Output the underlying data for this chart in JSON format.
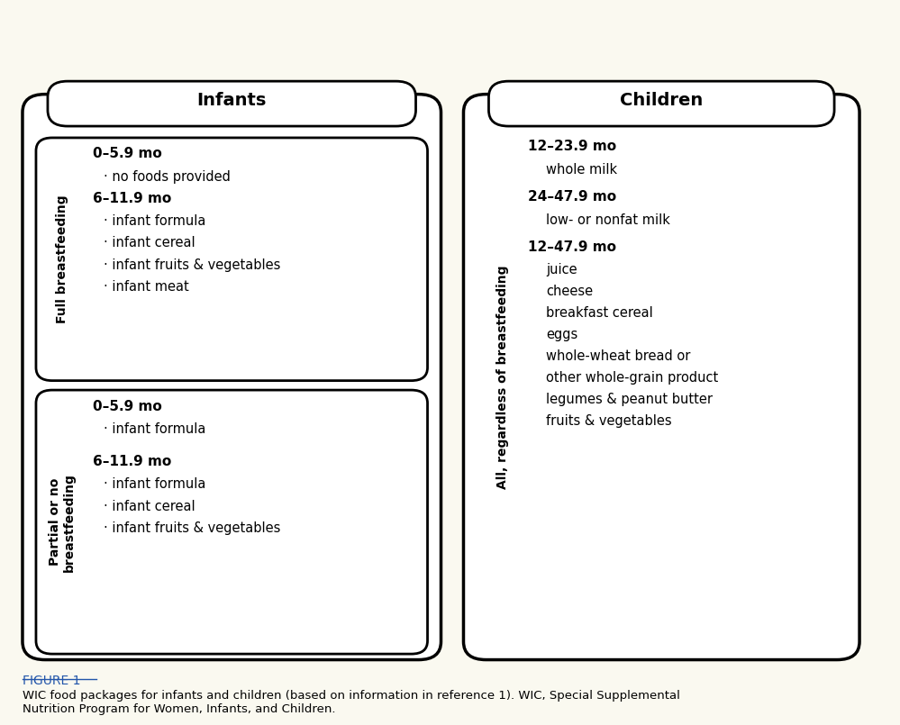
{
  "bg_color": "#faf9f0",
  "figure_caption_label": "FIGURE 1",
  "figure_caption": "WIC food packages for infants and children (based on information in reference 1). WIC, Special Supplemental\nNutrition Program for Women, Infants, and Children.",
  "infants_header": "Infants",
  "children_header": "Children",
  "full_bf_label": "Full breastfeeding",
  "partial_bf_label": "Partial or no\nbreastfeeding",
  "all_bf_label": "All, regardless of breastfeeding",
  "full_bf_section": [
    {
      "type": "header",
      "text": "0–5.9 mo"
    },
    {
      "type": "bullet",
      "text": "· no foods provided"
    },
    {
      "type": "header",
      "text": "6–11.9 mo"
    },
    {
      "type": "bullet",
      "text": "· infant formula"
    },
    {
      "type": "bullet",
      "text": "· infant cereal"
    },
    {
      "type": "bullet",
      "text": "· infant fruits & vegetables"
    },
    {
      "type": "bullet",
      "text": "· infant meat"
    }
  ],
  "partial_bf_section": [
    {
      "type": "header",
      "text": "0–5.9 mo"
    },
    {
      "type": "bullet",
      "text": "· infant formula"
    },
    {
      "type": "spacer"
    },
    {
      "type": "header",
      "text": "6–11.9 mo"
    },
    {
      "type": "bullet",
      "text": "· infant formula"
    },
    {
      "type": "bullet",
      "text": "· infant cereal"
    },
    {
      "type": "bullet",
      "text": "· infant fruits & vegetables"
    }
  ],
  "children_section": [
    {
      "type": "header",
      "text": "12–23.9 mo"
    },
    {
      "type": "indent",
      "text": "whole milk"
    },
    {
      "type": "spacer_small"
    },
    {
      "type": "header",
      "text": "24–47.9 mo"
    },
    {
      "type": "indent",
      "text": "low- or nonfat milk"
    },
    {
      "type": "spacer_small"
    },
    {
      "type": "header",
      "text": "12–47.9 mo"
    },
    {
      "type": "indent",
      "text": "juice"
    },
    {
      "type": "indent",
      "text": "cheese"
    },
    {
      "type": "indent",
      "text": "breakfast cereal"
    },
    {
      "type": "indent",
      "text": "eggs"
    },
    {
      "type": "indent",
      "text": "whole-wheat bread or"
    },
    {
      "type": "indent",
      "text": "other whole-grain product"
    },
    {
      "type": "indent",
      "text": "legumes & peanut butter"
    },
    {
      "type": "indent",
      "text": "fruits & vegetables"
    }
  ]
}
